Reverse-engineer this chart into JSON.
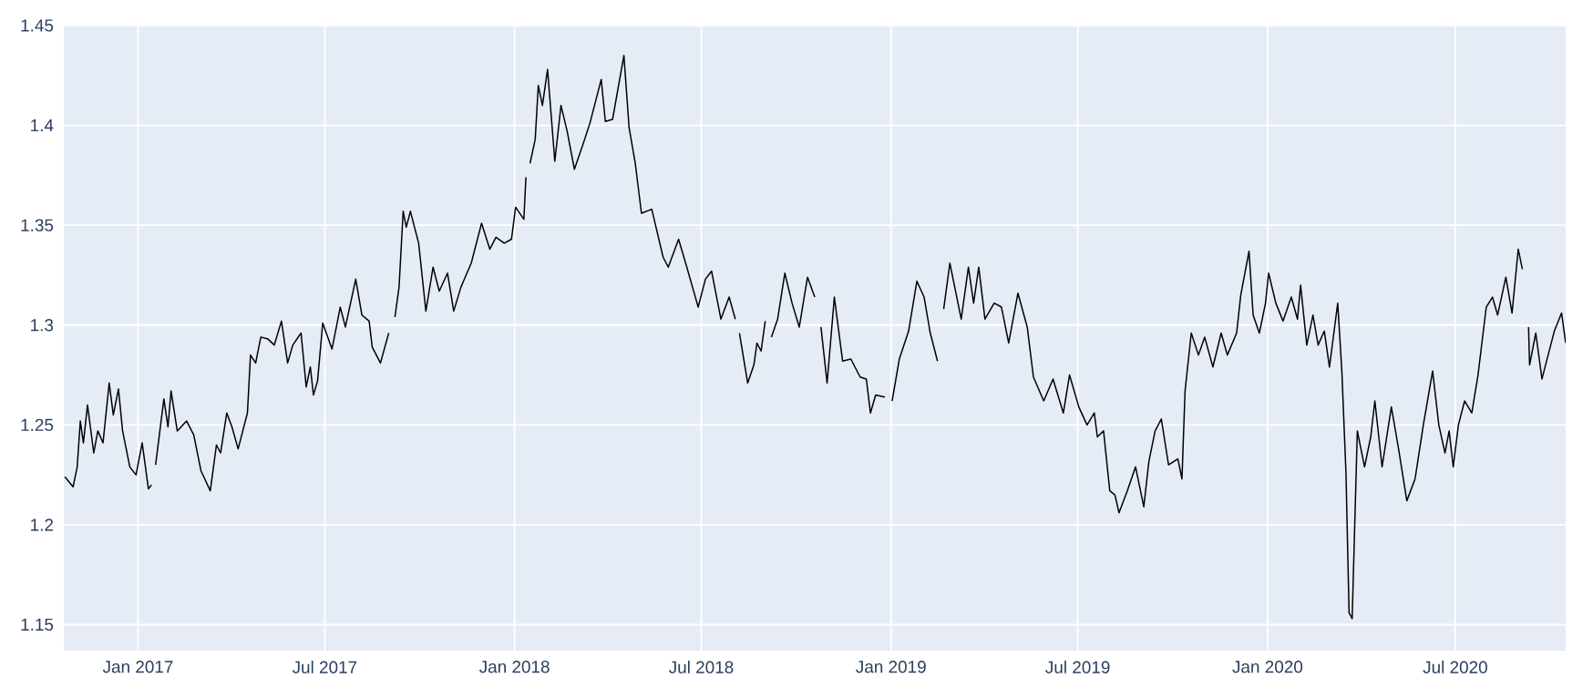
{
  "chart_data": {
    "type": "line",
    "grid": true,
    "xlim": [
      "2016-10-21",
      "2020-10-16"
    ],
    "ylim": [
      1.137,
      1.45
    ],
    "xticks": [
      {
        "value": "2017-01-01",
        "label": "Jan 2017"
      },
      {
        "value": "2017-07-01",
        "label": "Jul 2017"
      },
      {
        "value": "2018-01-01",
        "label": "Jan 2018"
      },
      {
        "value": "2018-07-01",
        "label": "Jul 2018"
      },
      {
        "value": "2019-01-01",
        "label": "Jan 2019"
      },
      {
        "value": "2019-07-01",
        "label": "Jul 2019"
      },
      {
        "value": "2020-01-01",
        "label": "Jan 2020"
      },
      {
        "value": "2020-07-01",
        "label": "Jul 2020"
      }
    ],
    "yticks": [
      1.15,
      1.2,
      1.25,
      1.3,
      1.35,
      1.4,
      1.45
    ],
    "x": [
      "2016-10-22",
      "2016-10-30",
      "2016-11-03",
      "2016-11-06",
      "2016-11-09",
      "2016-11-13",
      "2016-11-19",
      "2016-11-23",
      "2016-11-28",
      "2016-12-04",
      "2016-12-08",
      "2016-12-13",
      "2016-12-17",
      "2016-12-24",
      "2016-12-30",
      "2017-01-05",
      "2017-01-11",
      "2017-01-14",
      "2017-01-16",
      "2017-01-18",
      "2017-01-26",
      "2017-01-30",
      "2017-02-02",
      "2017-02-08",
      "2017-02-17",
      "2017-02-24",
      "2017-03-03",
      "2017-03-12",
      "2017-03-18",
      "2017-03-22",
      "2017-03-28",
      "2017-04-02",
      "2017-04-08",
      "2017-04-17",
      "2017-04-20",
      "2017-04-25",
      "2017-04-30",
      "2017-05-07",
      "2017-05-13",
      "2017-05-20",
      "2017-05-26",
      "2017-05-31",
      "2017-06-08",
      "2017-06-13",
      "2017-06-17",
      "2017-06-20",
      "2017-06-24",
      "2017-06-29",
      "2017-07-08",
      "2017-07-16",
      "2017-07-21",
      "2017-07-31",
      "2017-08-06",
      "2017-08-13",
      "2017-08-16",
      "2017-08-24",
      "2017-09-01",
      "2017-09-03",
      "2017-09-07",
      "2017-09-11",
      "2017-09-15",
      "2017-09-18",
      "2017-09-22",
      "2017-09-30",
      "2017-10-07",
      "2017-10-14",
      "2017-10-20",
      "2017-10-28",
      "2017-11-03",
      "2017-11-10",
      "2017-11-20",
      "2017-11-30",
      "2017-12-08",
      "2017-12-14",
      "2017-12-22",
      "2017-12-29",
      "2018-01-02",
      "2018-01-10",
      "2018-01-12",
      "2018-01-13",
      "2018-01-16",
      "2018-01-21",
      "2018-01-24",
      "2018-01-28",
      "2018-02-02",
      "2018-02-09",
      "2018-02-15",
      "2018-02-21",
      "2018-02-28",
      "2018-03-08",
      "2018-03-15",
      "2018-03-26",
      "2018-03-30",
      "2018-04-06",
      "2018-04-17",
      "2018-04-22",
      "2018-04-28",
      "2018-05-04",
      "2018-05-14",
      "2018-05-25",
      "2018-05-30",
      "2018-06-09",
      "2018-06-17",
      "2018-06-28",
      "2018-07-05",
      "2018-07-11",
      "2018-07-20",
      "2018-07-28",
      "2018-08-03",
      "2018-08-05",
      "2018-08-07",
      "2018-08-15",
      "2018-08-21",
      "2018-08-24",
      "2018-08-28",
      "2018-09-01",
      "2018-09-03",
      "2018-09-07",
      "2018-09-13",
      "2018-09-20",
      "2018-09-27",
      "2018-10-04",
      "2018-10-12",
      "2018-10-19",
      "2018-10-21",
      "2018-10-25",
      "2018-10-31",
      "2018-11-07",
      "2018-11-15",
      "2018-11-23",
      "2018-12-02",
      "2018-12-08",
      "2018-12-12",
      "2018-12-17",
      "2018-12-26",
      "2018-12-28",
      "2019-01-02",
      "2019-01-09",
      "2019-01-18",
      "2019-01-26",
      "2019-02-02",
      "2019-02-08",
      "2019-02-15",
      "2019-02-18",
      "2019-02-21",
      "2019-02-27",
      "2019-03-10",
      "2019-03-17",
      "2019-03-22",
      "2019-03-27",
      "2019-04-02",
      "2019-04-11",
      "2019-04-18",
      "2019-04-25",
      "2019-05-04",
      "2019-05-13",
      "2019-05-19",
      "2019-05-29",
      "2019-06-07",
      "2019-06-17",
      "2019-06-23",
      "2019-07-02",
      "2019-07-10",
      "2019-07-17",
      "2019-07-20",
      "2019-07-26",
      "2019-08-01",
      "2019-08-06",
      "2019-08-10",
      "2019-08-18",
      "2019-08-26",
      "2019-09-03",
      "2019-09-08",
      "2019-09-14",
      "2019-09-20",
      "2019-09-27",
      "2019-10-06",
      "2019-10-10",
      "2019-10-13",
      "2019-10-19",
      "2019-10-26",
      "2019-11-01",
      "2019-11-09",
      "2019-11-17",
      "2019-11-23",
      "2019-12-02",
      "2019-12-06",
      "2019-12-14",
      "2019-12-18",
      "2019-12-24",
      "2019-12-30",
      "2020-01-02",
      "2020-01-09",
      "2020-01-16",
      "2020-01-24",
      "2020-01-30",
      "2020-02-02",
      "2020-02-08",
      "2020-02-14",
      "2020-02-19",
      "2020-02-25",
      "2020-03-01",
      "2020-03-09",
      "2020-03-13",
      "2020-03-17",
      "2020-03-20",
      "2020-03-23",
      "2020-03-28",
      "2020-04-04",
      "2020-04-10",
      "2020-04-14",
      "2020-04-21",
      "2020-04-30",
      "2020-05-07",
      "2020-05-15",
      "2020-05-23",
      "2020-05-31",
      "2020-06-09",
      "2020-06-15",
      "2020-06-21",
      "2020-06-25",
      "2020-06-29",
      "2020-07-04",
      "2020-07-10",
      "2020-07-17",
      "2020-07-23",
      "2020-07-31",
      "2020-08-06",
      "2020-08-11",
      "2020-08-19",
      "2020-08-25",
      "2020-08-31",
      "2020-09-04",
      "2020-09-06",
      "2020-09-10",
      "2020-09-11",
      "2020-09-17",
      "2020-09-23",
      "2020-10-05",
      "2020-10-12",
      "2020-10-16"
    ],
    "series": [
      {
        "color": "#000000",
        "values": [
          1.224,
          1.219,
          1.229,
          1.252,
          1.241,
          1.26,
          1.236,
          1.247,
          1.241,
          1.271,
          1.255,
          1.268,
          1.247,
          1.229,
          1.225,
          1.241,
          1.218,
          1.22,
          null,
          1.23,
          1.263,
          1.249,
          1.267,
          1.247,
          1.252,
          1.245,
          1.227,
          1.217,
          1.24,
          1.236,
          1.256,
          1.249,
          1.238,
          1.256,
          1.285,
          1.281,
          1.294,
          1.293,
          1.29,
          1.302,
          1.281,
          1.29,
          1.296,
          1.269,
          1.279,
          1.265,
          1.272,
          1.301,
          1.288,
          1.309,
          1.299,
          1.323,
          1.305,
          1.302,
          1.289,
          1.281,
          1.296,
          null,
          1.304,
          1.319,
          1.357,
          1.349,
          1.357,
          1.341,
          1.307,
          1.329,
          1.317,
          1.326,
          1.307,
          1.319,
          1.331,
          1.351,
          1.338,
          1.344,
          1.341,
          1.343,
          1.359,
          1.353,
          1.374,
          null,
          1.381,
          1.393,
          1.42,
          1.41,
          1.428,
          1.382,
          1.41,
          1.397,
          1.378,
          1.39,
          1.401,
          1.423,
          1.402,
          1.403,
          1.435,
          1.399,
          1.381,
          1.356,
          1.358,
          1.334,
          1.329,
          1.343,
          1.329,
          1.309,
          1.323,
          1.327,
          1.303,
          1.314,
          1.303,
          null,
          1.296,
          1.271,
          1.28,
          1.291,
          1.287,
          1.302,
          null,
          1.294,
          1.303,
          1.326,
          1.311,
          1.299,
          1.324,
          1.314,
          null,
          1.299,
          1.271,
          1.314,
          1.282,
          1.283,
          1.274,
          1.273,
          1.256,
          1.265,
          1.264,
          null,
          1.262,
          1.283,
          1.297,
          1.322,
          1.314,
          1.296,
          1.282,
          null,
          1.308,
          1.331,
          1.303,
          1.329,
          1.311,
          1.329,
          1.303,
          1.311,
          1.309,
          1.291,
          1.316,
          1.299,
          1.274,
          1.262,
          1.273,
          1.256,
          1.275,
          1.259,
          1.25,
          1.256,
          1.244,
          1.247,
          1.217,
          1.215,
          1.206,
          1.217,
          1.229,
          1.209,
          1.232,
          1.247,
          1.253,
          1.23,
          1.233,
          1.223,
          1.267,
          1.296,
          1.285,
          1.294,
          1.279,
          1.296,
          1.285,
          1.296,
          1.315,
          1.337,
          1.305,
          1.296,
          1.311,
          1.326,
          1.311,
          1.302,
          1.314,
          1.303,
          1.32,
          1.29,
          1.305,
          1.29,
          1.297,
          1.279,
          1.311,
          1.277,
          1.226,
          1.156,
          1.153,
          1.247,
          1.229,
          1.244,
          1.262,
          1.229,
          1.259,
          1.238,
          1.212,
          1.223,
          1.25,
          1.277,
          1.25,
          1.236,
          1.247,
          1.229,
          1.25,
          1.262,
          1.256,
          1.275,
          1.309,
          1.314,
          1.305,
          1.324,
          1.306,
          1.338,
          1.328,
          null,
          1.299,
          1.28,
          1.296,
          1.273,
          1.297,
          1.306,
          1.291
        ]
      }
    ]
  }
}
